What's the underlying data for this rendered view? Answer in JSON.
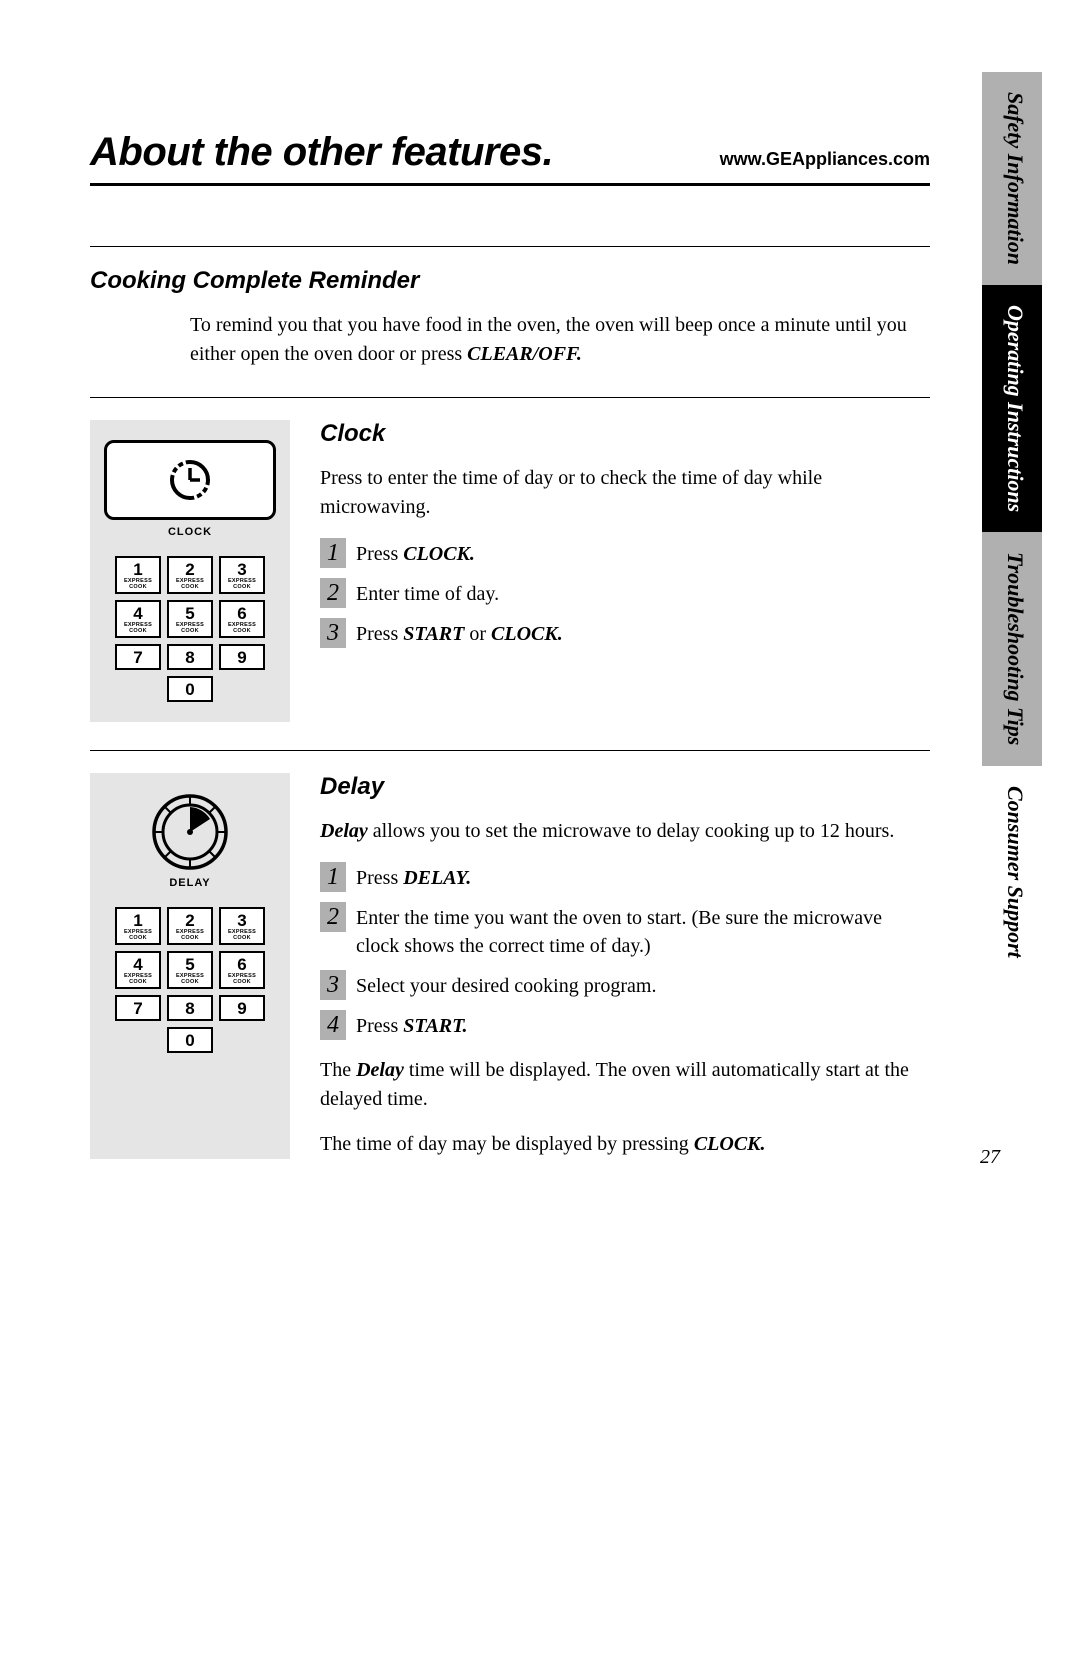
{
  "header": {
    "title": "About the other features.",
    "url": "www.GEAppliances.com"
  },
  "side_tabs": [
    {
      "label": "Safety Information",
      "style": "gray"
    },
    {
      "label": "Operating Instructions",
      "style": "black"
    },
    {
      "label": "Troubleshooting Tips",
      "style": "gray"
    },
    {
      "label": "Consumer Support",
      "style": "white"
    }
  ],
  "reminder": {
    "title": "Cooking Complete Reminder",
    "body_a": "To remind you that you have food in the oven, the oven will beep once a minute until you either open the oven door or press ",
    "body_b": "CLEAR/OFF."
  },
  "clock": {
    "title": "Clock",
    "panel_label": "CLOCK",
    "intro": "Press to enter the time of day or to check the time of day while microwaving.",
    "steps": [
      {
        "pre": "Press ",
        "bold": "CLOCK.",
        "post": ""
      },
      {
        "pre": "Enter time of day.",
        "bold": "",
        "post": ""
      },
      {
        "pre": "Press ",
        "bold": "START",
        "post": " or ",
        "bold2": "CLOCK."
      }
    ]
  },
  "delay": {
    "title": "Delay",
    "panel_label": "DELAY",
    "intro_bold": "Delay",
    "intro_rest": " allows you to set the microwave to delay cooking up to 12 hours.",
    "steps": [
      {
        "pre": "Press ",
        "bold": "DELAY.",
        "post": ""
      },
      {
        "pre": "Enter the time you want the oven to start. (Be sure the microwave clock shows the correct time of day.)",
        "bold": "",
        "post": ""
      },
      {
        "pre": "Select your desired cooking program.",
        "bold": "",
        "post": ""
      },
      {
        "pre": "Press ",
        "bold": "START.",
        "post": ""
      }
    ],
    "outro1_a": "The ",
    "outro1_b": "Delay",
    "outro1_c": " time will be displayed. The oven will automatically start at the delayed time.",
    "outro2_a": "The time of day may be displayed by pressing ",
    "outro2_b": "CLOCK."
  },
  "keypad": {
    "keys": [
      "1",
      "2",
      "3",
      "4",
      "5",
      "6",
      "7",
      "8",
      "9",
      "0"
    ],
    "sub_label": "EXPRESS COOK",
    "sub_indices": [
      0,
      1,
      2,
      3,
      4,
      5
    ]
  },
  "page_number": "27",
  "colors": {
    "panel_bg": "#e5e5e5",
    "tab_gray": "#b0b0b0",
    "step_bg": "#b0b0b0"
  }
}
